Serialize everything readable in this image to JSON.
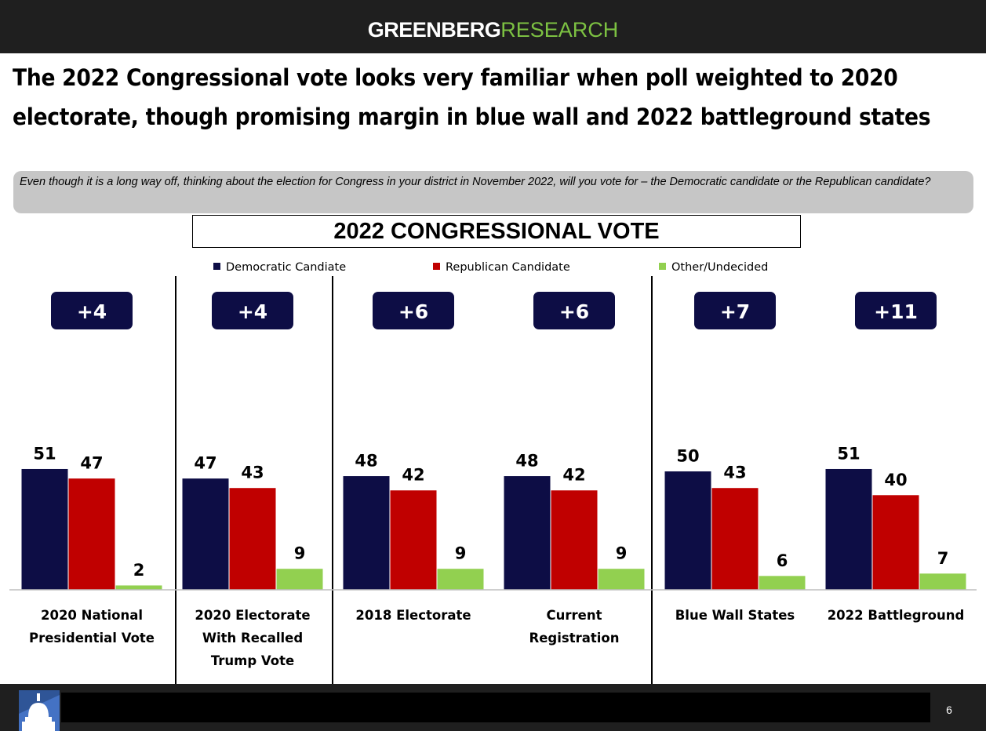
{
  "brand": {
    "part1": "GREENBERG",
    "part2": "RESEARCH"
  },
  "headline": {
    "line1": "The 2022 Congressional vote looks very familiar when poll weighted to 2020",
    "line2": "electorate, though promising margin in blue wall and 2022 battleground states"
  },
  "question": "Even though it is a long way off, thinking about the election for Congress in your district in November 2022, will you vote for – the Democratic candidate or the Republican candidate?",
  "page_number": "6",
  "icons": {
    "logo": "capitol-dome-icon"
  },
  "chart_data": {
    "type": "bar",
    "title": "2022 CONGRESSIONAL VOTE",
    "legend_position": "top",
    "categories": [
      [
        "2020 National",
        "Presidential Vote"
      ],
      [
        "2020 Electorate",
        "With Recalled",
        "Trump Vote"
      ],
      [
        "2018 Electorate"
      ],
      [
        "Current",
        "Registration"
      ],
      [
        "Blue Wall States"
      ],
      [
        "2022 Battleground"
      ]
    ],
    "series": [
      {
        "name": "Democratic Candiate",
        "color": "#0d0d45",
        "values": [
          51,
          47,
          48,
          48,
          50,
          51
        ]
      },
      {
        "name": "Republican Candidate",
        "color": "#c00000",
        "values": [
          47,
          43,
          42,
          42,
          43,
          40
        ]
      },
      {
        "name": "Other/Undecided",
        "color": "#92d050",
        "values": [
          2,
          9,
          9,
          9,
          6,
          7
        ]
      }
    ],
    "margins": [
      "+4",
      "+4",
      "+6",
      "+6",
      "+7",
      "+11"
    ],
    "margin_badge_color": "#0d0d45",
    "ylim": [
      0,
      100
    ]
  }
}
